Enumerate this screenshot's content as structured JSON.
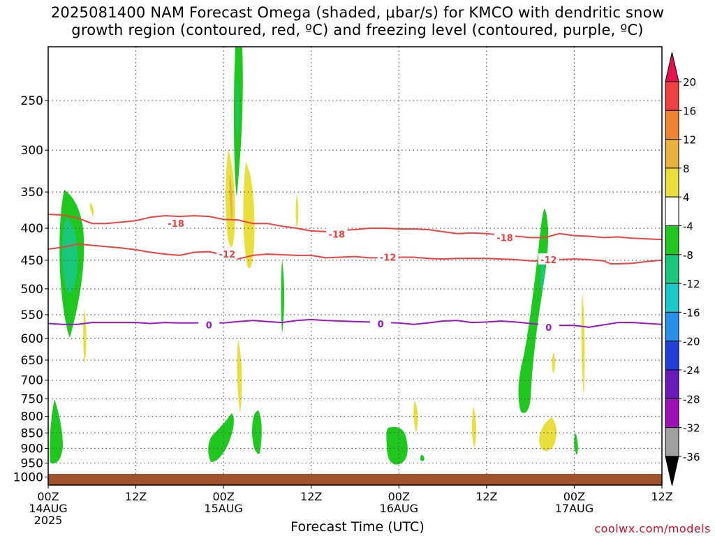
{
  "title_line1": "2025081400 NAM Forecast Omega (shaded, μbar/s) for KMCO with dendritic snow",
  "title_line2": "growth region (contoured, red, ºC) and freezing level (contoured, purple, ºC)",
  "credit": "coolwx.com/models",
  "chart_data": {
    "type": "heatmap",
    "title": "2025081400 NAM Forecast Omega (shaded, μbar/s) for KMCO with dendritic snow growth region (contoured, red, ºC) and freezing level (contoured, purple, ºC)",
    "xlabel": "Forecast Time (UTC)",
    "ylabel": "",
    "x_range_hours": [
      0,
      84
    ],
    "y_scale": "log",
    "y_range_hPa": [
      1030,
      205
    ],
    "y_ticks": [
      250,
      300,
      350,
      400,
      450,
      500,
      550,
      600,
      650,
      700,
      750,
      800,
      850,
      900,
      950,
      1000
    ],
    "x_ticks": [
      {
        "hour": 0,
        "label": "00Z",
        "date": "14AUG",
        "year": "2025"
      },
      {
        "hour": 12,
        "label": "12Z",
        "date": "",
        "year": ""
      },
      {
        "hour": 24,
        "label": "00Z",
        "date": "15AUG",
        "year": ""
      },
      {
        "hour": 36,
        "label": "12Z",
        "date": "",
        "year": ""
      },
      {
        "hour": 48,
        "label": "00Z",
        "date": "16AUG",
        "year": ""
      },
      {
        "hour": 60,
        "label": "12Z",
        "date": "",
        "year": ""
      },
      {
        "hour": 72,
        "label": "00Z",
        "date": "17AUG",
        "year": ""
      },
      {
        "hour": 84,
        "label": "12Z",
        "date": "",
        "year": ""
      }
    ],
    "colorbar": {
      "labels": [
        "20",
        "16",
        "12",
        "8",
        "4",
        "-4",
        "-8",
        "-12",
        "-16",
        "-20",
        "-24",
        "-28",
        "-32",
        "-36"
      ],
      "colors": [
        "#e8114e",
        "#f04040",
        "#ee8330",
        "#e8b23c",
        "#e8de3c",
        "#ffffff",
        "#1ec81e",
        "#19c87a",
        "#19c8c8",
        "#2890e8",
        "#2040d8",
        "#6a1ab8",
        "#a010b8",
        "#a0a0a0",
        "#000000"
      ]
    },
    "contours": [
      {
        "name": "-18",
        "color": "#f04040",
        "labels": [
          {
            "hour": 17.5,
            "hPa": 393
          },
          {
            "hour": 39.5,
            "hPa": 409
          },
          {
            "hour": 62.5,
            "hPa": 414
          }
        ],
        "points": [
          [
            0,
            380
          ],
          [
            2,
            381
          ],
          [
            4,
            385
          ],
          [
            6,
            393
          ],
          [
            8,
            393
          ],
          [
            10,
            391
          ],
          [
            12,
            389
          ],
          [
            14,
            384
          ],
          [
            16,
            382
          ],
          [
            18,
            383
          ],
          [
            20,
            382
          ],
          [
            22,
            383
          ],
          [
            24,
            387
          ],
          [
            26,
            388
          ],
          [
            28,
            393
          ],
          [
            30,
            393
          ],
          [
            32,
            397
          ],
          [
            34,
            400
          ],
          [
            36,
            404
          ],
          [
            38,
            405
          ],
          [
            40,
            403
          ],
          [
            42,
            402
          ],
          [
            44,
            400
          ],
          [
            46,
            400
          ],
          [
            48,
            401
          ],
          [
            50,
            401
          ],
          [
            52,
            402
          ],
          [
            54,
            405
          ],
          [
            56,
            408
          ],
          [
            58,
            407
          ],
          [
            60,
            408
          ],
          [
            62,
            410
          ],
          [
            64,
            412
          ],
          [
            66,
            414
          ],
          [
            68,
            414
          ],
          [
            70,
            408
          ],
          [
            72,
            411
          ],
          [
            74,
            412
          ],
          [
            76,
            414
          ],
          [
            78,
            413
          ],
          [
            80,
            415
          ],
          [
            82,
            416
          ],
          [
            84,
            417
          ]
        ]
      },
      {
        "name": "-12",
        "color": "#f04040",
        "labels": [
          {
            "hour": 24.5,
            "hPa": 440
          },
          {
            "hour": 46.5,
            "hPa": 445
          },
          {
            "hour": 68.5,
            "hPa": 449
          }
        ],
        "points": [
          [
            0,
            432
          ],
          [
            2,
            429
          ],
          [
            4,
            424
          ],
          [
            6,
            426
          ],
          [
            8,
            428
          ],
          [
            10,
            430
          ],
          [
            12,
            433
          ],
          [
            14,
            437
          ],
          [
            16,
            440
          ],
          [
            18,
            442
          ],
          [
            20,
            437
          ],
          [
            22,
            436
          ],
          [
            24,
            441
          ],
          [
            26,
            448
          ],
          [
            28,
            442
          ],
          [
            30,
            440
          ],
          [
            32,
            441
          ],
          [
            34,
            442
          ],
          [
            36,
            442
          ],
          [
            38,
            446
          ],
          [
            40,
            445
          ],
          [
            42,
            444
          ],
          [
            44,
            446
          ],
          [
            46,
            446
          ],
          [
            48,
            445
          ],
          [
            50,
            445
          ],
          [
            52,
            447
          ],
          [
            54,
            448
          ],
          [
            56,
            447
          ],
          [
            58,
            447
          ],
          [
            60,
            447
          ],
          [
            62,
            448
          ],
          [
            64,
            449
          ],
          [
            66,
            451
          ],
          [
            68,
            452
          ],
          [
            70,
            449
          ],
          [
            72,
            448
          ],
          [
            74,
            449
          ],
          [
            76,
            451
          ],
          [
            77,
            456
          ],
          [
            78,
            456
          ],
          [
            80,
            455
          ],
          [
            82,
            452
          ],
          [
            84,
            450
          ]
        ]
      },
      {
        "name": "0",
        "color": "#9a14c8",
        "labels": [
          {
            "hour": 22,
            "hPa": 571
          },
          {
            "hour": 45.5,
            "hPa": 569
          },
          {
            "hour": 68.5,
            "hPa": 576
          }
        ],
        "points": [
          [
            0,
            568
          ],
          [
            2,
            570
          ],
          [
            4,
            570
          ],
          [
            6,
            566
          ],
          [
            8,
            566
          ],
          [
            10,
            566
          ],
          [
            12,
            566
          ],
          [
            14,
            568
          ],
          [
            16,
            566
          ],
          [
            18,
            567
          ],
          [
            20,
            567
          ],
          [
            22,
            566
          ],
          [
            24,
            567
          ],
          [
            26,
            564
          ],
          [
            28,
            562
          ],
          [
            30,
            564
          ],
          [
            32,
            566
          ],
          [
            34,
            562
          ],
          [
            36,
            560
          ],
          [
            38,
            562
          ],
          [
            40,
            563
          ],
          [
            42,
            564
          ],
          [
            44,
            565
          ],
          [
            46,
            566
          ],
          [
            48,
            567
          ],
          [
            50,
            570
          ],
          [
            52,
            567
          ],
          [
            54,
            563
          ],
          [
            56,
            562
          ],
          [
            58,
            566
          ],
          [
            60,
            565
          ],
          [
            62,
            563
          ],
          [
            64,
            565
          ],
          [
            66,
            568
          ],
          [
            68,
            571
          ],
          [
            70,
            572
          ],
          [
            72,
            572
          ],
          [
            74,
            576
          ],
          [
            76,
            571
          ],
          [
            78,
            566
          ],
          [
            80,
            566
          ],
          [
            82,
            568
          ],
          [
            84,
            570
          ]
        ]
      }
    ],
    "omega_regions": [
      {
        "hour_center": 3.0,
        "hPa_top": 355,
        "hPa_bottom": 605,
        "value_range": "-4 to -8"
      },
      {
        "hour_center": 3.0,
        "hPa_top": 400,
        "hPa_bottom": 545,
        "value_range": "-8 to -12"
      },
      {
        "hour_center": 1.0,
        "hPa_top": 775,
        "hPa_bottom": 965,
        "value_range": "-4 to -8"
      },
      {
        "hour_center": 26.5,
        "hPa_top": 200,
        "hPa_bottom": 360,
        "value_range": "-4 to -8"
      },
      {
        "hour_center": 25.0,
        "hPa_top": 310,
        "hPa_bottom": 425,
        "value_range": "4 to 8"
      },
      {
        "hour_center": 27.5,
        "hPa_top": 310,
        "hPa_bottom": 470,
        "value_range": "4 to 8"
      },
      {
        "hour_center": 24.5,
        "hPa_top": 830,
        "hPa_bottom": 965,
        "value_range": "-4 to -8"
      },
      {
        "hour_center": 28.5,
        "hPa_top": 820,
        "hPa_bottom": 945,
        "value_range": "-4 to -8"
      },
      {
        "hour_center": 32.5,
        "hPa_top": 470,
        "hPa_bottom": 600,
        "value_range": "-4 to -8"
      },
      {
        "hour_center": 48.0,
        "hPa_top": 855,
        "hPa_bottom": 965,
        "value_range": "-4 to -8"
      },
      {
        "hour_center": 67.5,
        "hPa_top": 370,
        "hPa_bottom": 810,
        "value_range": "-4 to -8"
      },
      {
        "hour_center": 68.5,
        "hPa_top": 420,
        "hPa_bottom": 520,
        "value_range": "-8 to -12"
      },
      {
        "hour_center": 68.8,
        "hPa_top": 855,
        "hPa_bottom": 945,
        "value_range": "4 to 8"
      },
      {
        "hour_center": 73.0,
        "hPa_top": 520,
        "hPa_bottom": 760,
        "value_range": "4 to 8"
      }
    ]
  }
}
